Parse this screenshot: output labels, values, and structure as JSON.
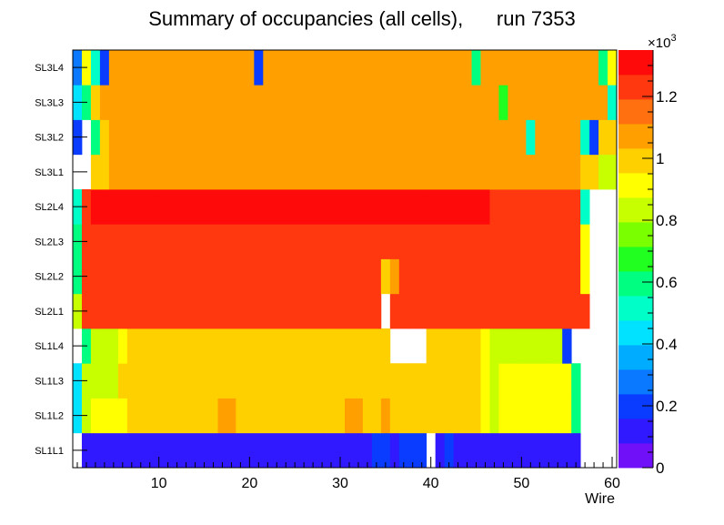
{
  "chart_data": {
    "type": "heatmap",
    "title": "Summary of occupancies (all cells),      run 7353",
    "xlabel": "Wire",
    "ylabel": "",
    "x_range": [
      0.5,
      60.5
    ],
    "x_ticks": [
      10,
      20,
      30,
      40,
      50,
      60
    ],
    "rows": [
      "SL1L1",
      "SL1L2",
      "SL1L3",
      "SL1L4",
      "SL2L1",
      "SL2L2",
      "SL2L3",
      "SL2L4",
      "SL3L1",
      "SL3L2",
      "SL3L3",
      "SL3L4"
    ],
    "colorbar": {
      "min": 0,
      "max": 1.35,
      "ticks": [
        0,
        0.2,
        0.4,
        0.6,
        0.8,
        1,
        1.2
      ],
      "tick_labels": [
        "0",
        "0.2",
        "0.4",
        "0.6",
        "0.8",
        "1",
        "1.2"
      ],
      "exponent_label": "×10",
      "exponent_power": "3",
      "palette": [
        "#7010f8",
        "#3018ff",
        "#0a3cff",
        "#0a78ff",
        "#00acff",
        "#00e2ff",
        "#00ffc8",
        "#00ff80",
        "#20ff20",
        "#7aff00",
        "#c8ff00",
        "#ffff00",
        "#ffd000",
        "#ffa000",
        "#ff7010",
        "#ff3810",
        "#ff0a0a"
      ]
    },
    "values": [
      [
        null,
        0.1,
        0.1,
        0.1,
        0.1,
        0.1,
        0.1,
        0.1,
        0.1,
        0.1,
        0.1,
        0.1,
        0.1,
        0.1,
        0.1,
        0.1,
        0.1,
        0.1,
        0.1,
        0.1,
        0.1,
        0.1,
        0.1,
        0.1,
        0.1,
        0.1,
        0.1,
        0.1,
        0.1,
        0.1,
        0.1,
        0.1,
        0.1,
        0.2,
        0.2,
        0.1,
        0.2,
        0.2,
        0.2,
        null,
        0.1,
        0.2,
        0.1,
        0.1,
        0.1,
        0.1,
        0.1,
        0.1,
        0.1,
        0.1,
        0.1,
        0.1,
        0.1,
        0.1,
        0.1,
        0.1,
        null,
        null,
        null,
        null
      ],
      [
        0.4,
        0.8,
        0.9,
        0.9,
        0.9,
        0.9,
        1.0,
        1.0,
        1.0,
        1.0,
        1.0,
        1.0,
        1.0,
        1.0,
        1.0,
        1.0,
        1.1,
        1.1,
        1.0,
        1.0,
        1.0,
        1.0,
        1.0,
        1.0,
        1.0,
        1.0,
        1.0,
        1.0,
        1.0,
        1.0,
        1.1,
        1.1,
        1.0,
        1.0,
        1.1,
        1.0,
        1.0,
        1.0,
        1.0,
        1.0,
        1.0,
        1.0,
        1.0,
        1.0,
        1.0,
        0.9,
        0.8,
        0.9,
        0.9,
        0.9,
        0.9,
        0.9,
        0.9,
        0.9,
        0.9,
        0.6,
        null,
        null,
        null,
        null
      ],
      [
        0.4,
        0.8,
        0.8,
        0.8,
        0.8,
        1.0,
        1.0,
        1.0,
        1.0,
        1.0,
        1.0,
        1.0,
        1.0,
        1.0,
        1.0,
        1.0,
        1.0,
        1.0,
        1.0,
        1.0,
        1.0,
        1.0,
        1.0,
        1.0,
        1.0,
        1.0,
        1.0,
        1.0,
        1.0,
        1.0,
        1.0,
        1.0,
        1.0,
        1.0,
        1.0,
        1.0,
        1.0,
        1.0,
        1.0,
        1.0,
        1.0,
        1.0,
        1.0,
        1.0,
        1.0,
        0.9,
        0.8,
        0.9,
        0.9,
        0.9,
        0.9,
        0.9,
        0.9,
        0.9,
        0.9,
        0.6,
        null,
        null,
        null,
        null
      ],
      [
        null,
        0.6,
        0.8,
        0.8,
        0.8,
        0.9,
        1.0,
        1.0,
        1.0,
        1.0,
        1.0,
        1.0,
        1.0,
        1.0,
        1.0,
        1.0,
        1.0,
        1.0,
        1.0,
        1.0,
        1.0,
        1.0,
        1.0,
        1.0,
        1.0,
        1.0,
        1.0,
        1.0,
        1.0,
        1.0,
        1.0,
        1.0,
        1.0,
        1.0,
        1.0,
        null,
        null,
        null,
        null,
        1.0,
        1.0,
        1.0,
        1.0,
        1.0,
        1.0,
        0.9,
        0.8,
        0.8,
        0.8,
        0.8,
        0.8,
        0.8,
        0.8,
        0.8,
        0.2,
        null,
        null,
        null,
        null,
        null
      ],
      [
        0.8,
        1.2,
        1.2,
        1.2,
        1.2,
        1.2,
        1.2,
        1.2,
        1.2,
        1.2,
        1.2,
        1.2,
        1.2,
        1.2,
        1.2,
        1.2,
        1.2,
        1.2,
        1.2,
        1.2,
        1.2,
        1.2,
        1.2,
        1.2,
        1.2,
        1.2,
        1.2,
        1.2,
        1.2,
        1.2,
        1.2,
        1.2,
        1.2,
        1.2,
        null,
        1.2,
        1.2,
        1.2,
        1.2,
        1.2,
        1.2,
        1.2,
        1.2,
        1.2,
        1.2,
        1.2,
        1.2,
        1.2,
        1.2,
        1.2,
        1.2,
        1.2,
        1.2,
        1.2,
        1.2,
        1.2,
        1.2,
        null,
        null,
        null
      ],
      [
        0.6,
        1.2,
        1.2,
        1.2,
        1.2,
        1.2,
        1.2,
        1.2,
        1.2,
        1.2,
        1.2,
        1.2,
        1.2,
        1.2,
        1.2,
        1.2,
        1.2,
        1.2,
        1.2,
        1.2,
        1.2,
        1.2,
        1.2,
        1.2,
        1.2,
        1.2,
        1.2,
        1.2,
        1.2,
        1.2,
        1.2,
        1.2,
        1.2,
        1.2,
        1.0,
        1.1,
        1.2,
        1.2,
        1.2,
        1.2,
        1.2,
        1.2,
        1.2,
        1.2,
        1.2,
        1.2,
        1.2,
        1.2,
        1.2,
        1.2,
        1.2,
        1.2,
        1.2,
        1.2,
        1.2,
        1.2,
        0.9,
        null,
        null,
        null
      ],
      [
        0.6,
        1.2,
        1.2,
        1.2,
        1.2,
        1.2,
        1.2,
        1.2,
        1.2,
        1.2,
        1.2,
        1.2,
        1.2,
        1.2,
        1.2,
        1.2,
        1.2,
        1.2,
        1.2,
        1.2,
        1.2,
        1.2,
        1.2,
        1.2,
        1.2,
        1.2,
        1.2,
        1.2,
        1.2,
        1.2,
        1.2,
        1.2,
        1.2,
        1.2,
        1.2,
        1.2,
        1.2,
        1.2,
        1.2,
        1.2,
        1.2,
        1.2,
        1.2,
        1.2,
        1.2,
        1.2,
        1.2,
        1.2,
        1.2,
        1.2,
        1.2,
        1.2,
        1.2,
        1.2,
        1.2,
        1.2,
        0.9,
        null,
        null,
        null
      ],
      [
        0.5,
        1.2,
        1.3,
        1.3,
        1.3,
        1.3,
        1.3,
        1.3,
        1.3,
        1.3,
        1.3,
        1.3,
        1.3,
        1.3,
        1.3,
        1.3,
        1.3,
        1.3,
        1.3,
        1.3,
        1.3,
        1.3,
        1.3,
        1.3,
        1.3,
        1.3,
        1.3,
        1.3,
        1.3,
        1.3,
        1.3,
        1.3,
        1.3,
        1.3,
        1.3,
        1.3,
        1.3,
        1.3,
        1.3,
        1.3,
        1.3,
        1.3,
        1.3,
        1.3,
        1.3,
        1.3,
        1.2,
        1.2,
        1.2,
        1.2,
        1.2,
        1.2,
        1.2,
        1.2,
        1.2,
        1.2,
        0.5,
        null,
        null,
        null
      ],
      [
        null,
        null,
        1.0,
        1.0,
        1.1,
        1.1,
        1.1,
        1.1,
        1.1,
        1.1,
        1.1,
        1.1,
        1.1,
        1.1,
        1.1,
        1.1,
        1.1,
        1.1,
        1.1,
        1.1,
        1.1,
        1.1,
        1.1,
        1.1,
        1.1,
        1.1,
        1.1,
        1.1,
        1.1,
        1.1,
        1.1,
        1.1,
        1.1,
        1.1,
        1.1,
        1.1,
        1.1,
        1.1,
        1.1,
        1.1,
        1.1,
        1.1,
        1.1,
        1.1,
        1.1,
        1.1,
        1.1,
        1.1,
        1.1,
        1.1,
        1.1,
        1.1,
        1.1,
        1.1,
        1.1,
        1.1,
        1.0,
        1.0,
        0.8,
        0.8
      ],
      [
        0.2,
        null,
        0.6,
        1.0,
        1.1,
        1.1,
        1.1,
        1.1,
        1.1,
        1.1,
        1.1,
        1.1,
        1.1,
        1.1,
        1.1,
        1.1,
        1.1,
        1.1,
        1.1,
        1.1,
        1.1,
        1.1,
        1.1,
        1.1,
        1.1,
        1.1,
        1.1,
        1.1,
        1.1,
        1.1,
        1.1,
        1.1,
        1.1,
        1.1,
        1.1,
        1.1,
        1.1,
        1.1,
        1.1,
        1.1,
        1.1,
        1.1,
        1.1,
        1.1,
        1.1,
        1.1,
        1.1,
        1.1,
        1.1,
        1.1,
        0.5,
        1.1,
        1.1,
        1.1,
        1.1,
        1.1,
        0.5,
        0.2,
        1.0,
        1.0
      ],
      [
        0.4,
        0.6,
        1.0,
        1.1,
        1.1,
        1.1,
        1.1,
        1.1,
        1.1,
        1.1,
        1.1,
        1.1,
        1.1,
        1.1,
        1.1,
        1.1,
        1.1,
        1.1,
        1.1,
        1.1,
        1.1,
        1.1,
        1.1,
        1.1,
        1.1,
        1.1,
        1.1,
        1.1,
        1.1,
        1.1,
        1.1,
        1.1,
        1.1,
        1.1,
        1.1,
        1.1,
        1.1,
        1.1,
        1.1,
        1.1,
        1.1,
        1.1,
        1.1,
        1.1,
        1.1,
        1.1,
        1.1,
        0.7,
        1.1,
        1.1,
        1.1,
        1.1,
        1.1,
        1.1,
        1.1,
        1.1,
        1.1,
        1.1,
        1.1,
        0.5
      ],
      [
        0.3,
        0.9,
        0.5,
        0.2,
        1.1,
        1.1,
        1.1,
        1.1,
        1.1,
        1.1,
        1.1,
        1.1,
        1.1,
        1.1,
        1.1,
        1.1,
        1.1,
        1.1,
        1.1,
        1.1,
        0.2,
        1.1,
        1.1,
        1.1,
        1.1,
        1.1,
        1.1,
        1.1,
        1.1,
        1.1,
        1.1,
        1.1,
        1.1,
        1.1,
        1.1,
        1.1,
        1.1,
        1.1,
        1.1,
        1.1,
        1.1,
        1.1,
        1.1,
        1.1,
        0.6,
        1.1,
        1.1,
        1.1,
        1.1,
        1.1,
        1.1,
        1.1,
        1.1,
        1.1,
        1.1,
        1.1,
        1.1,
        1.1,
        0.6,
        0.9
      ]
    ]
  }
}
